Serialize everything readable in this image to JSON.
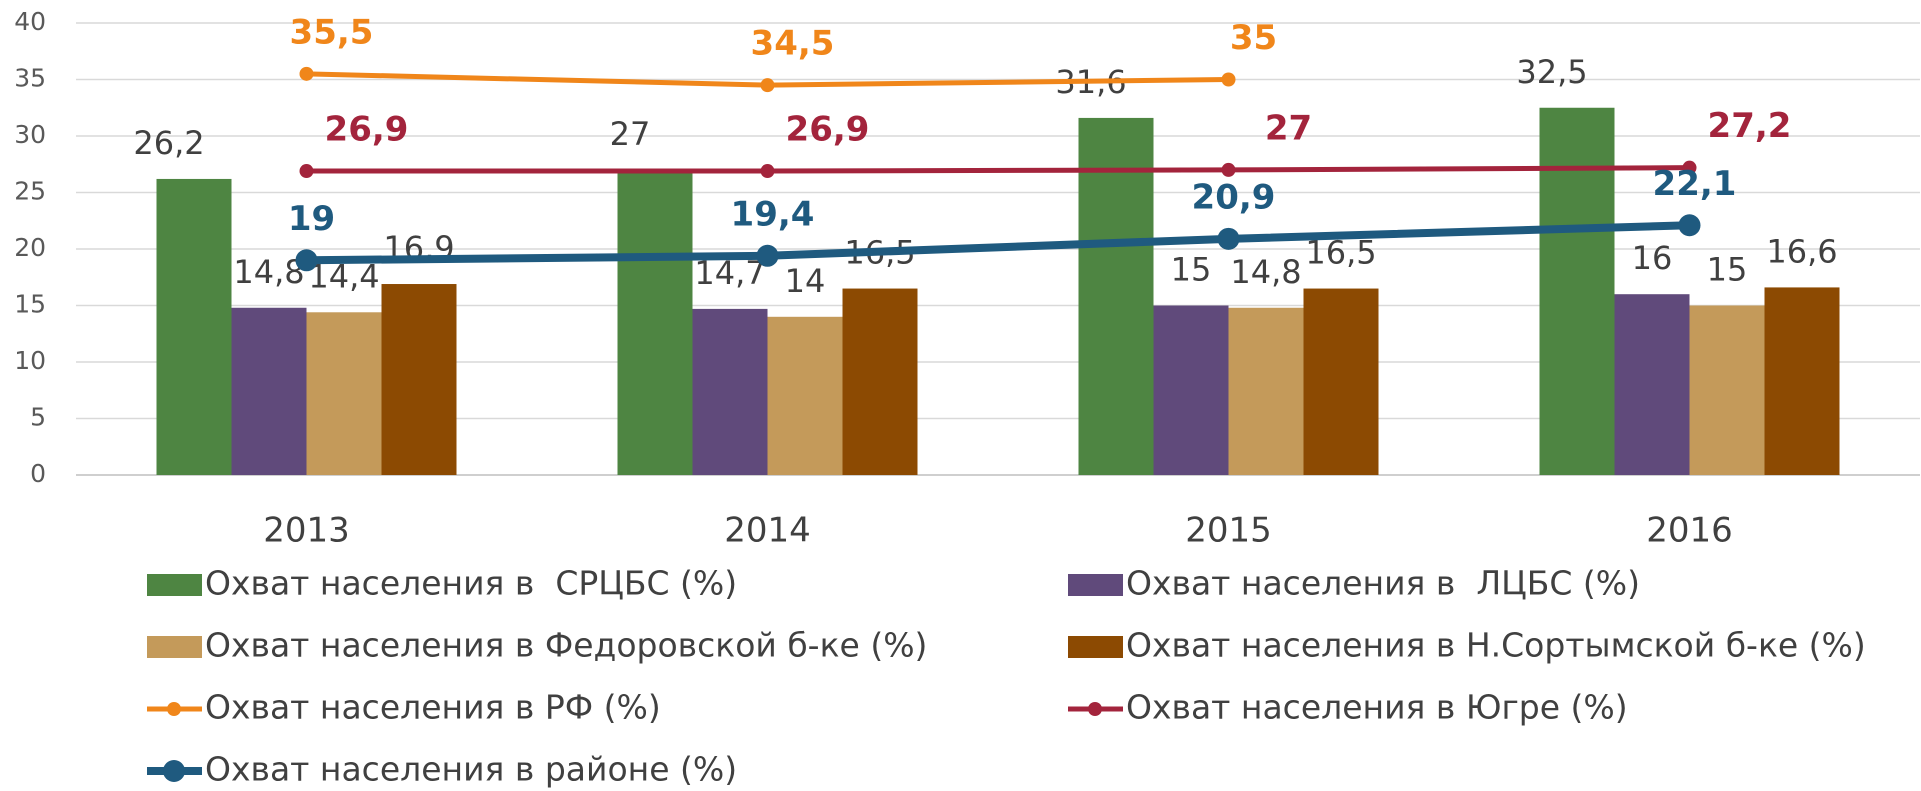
{
  "chart_data": {
    "type": "bar",
    "categories": [
      "2013",
      "2014",
      "2015",
      "2016"
    ],
    "ylim": [
      0,
      40
    ],
    "yticks": [
      0,
      5,
      10,
      15,
      20,
      25,
      30,
      35,
      40
    ],
    "grid": true,
    "series": [
      {
        "name": "Охват населения в  СРЦБС (%)",
        "color": "#4e8542",
        "values": [
          26.2,
          27,
          31.6,
          32.5
        ],
        "value_labels": [
          "26,2",
          "27",
          "31,6",
          "32,5"
        ]
      },
      {
        "name": "Охват населения в  ЛЦБС (%)",
        "color": "#604a7b",
        "values": [
          14.8,
          14.7,
          15,
          16
        ],
        "value_labels": [
          "14,8",
          "14,7",
          "15",
          "16"
        ]
      },
      {
        "name": "Охват населения в Федоровской б-ке (%)",
        "color": "#c49a5a",
        "values": [
          14.4,
          14,
          14.8,
          15
        ],
        "value_labels": [
          "14,4",
          "14",
          "14,8",
          "15"
        ]
      },
      {
        "name": "Охват населения в Н.Сортымской б-ке (%)",
        "color": "#8c4a02",
        "values": [
          16.9,
          16.5,
          16.5,
          16.6
        ],
        "value_labels": [
          "16,9",
          "16,5",
          "16,5",
          "16,6"
        ]
      },
      {
        "name": "Охват населения в РФ (%)",
        "type": "line",
        "color": "#f0861a",
        "values": [
          35.5,
          34.5,
          35,
          null
        ],
        "value_labels": [
          "35,5",
          "34,5",
          "35",
          null
        ]
      },
      {
        "name": "Охват населения в Югре (%)",
        "type": "line",
        "color": "#a3243c",
        "values": [
          26.9,
          26.9,
          27,
          27.2
        ],
        "value_labels": [
          "26,9",
          "26,9",
          "27",
          "27,2"
        ]
      },
      {
        "name": "Охват населения в районе (%)",
        "type": "line",
        "color": "#1f5a7f",
        "values": [
          19,
          19.4,
          20.9,
          22.1
        ],
        "value_labels": [
          "19",
          "19,4",
          "20,9",
          "22,1"
        ]
      }
    ]
  }
}
